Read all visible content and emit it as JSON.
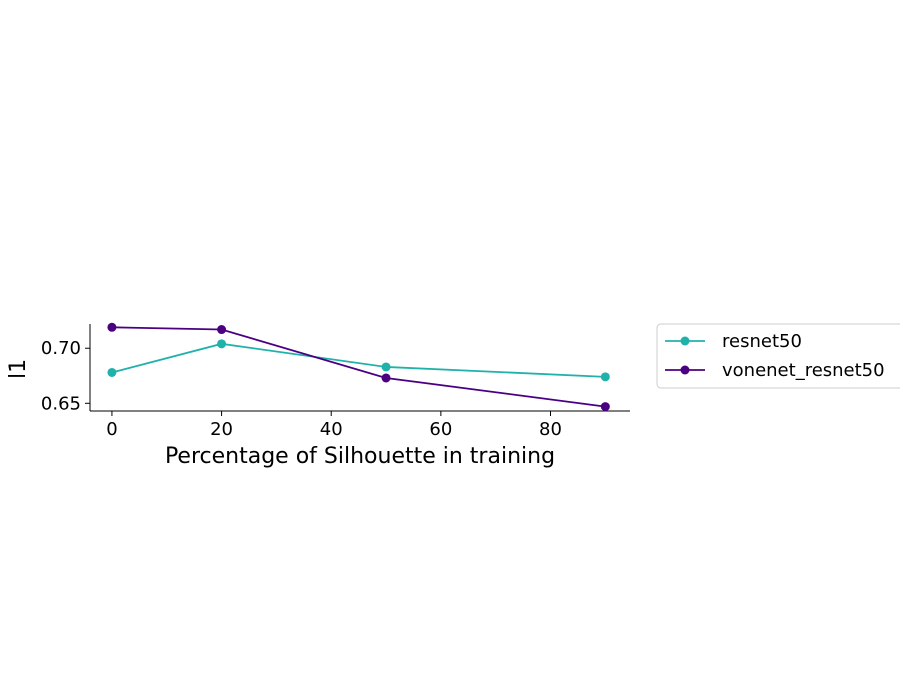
{
  "chart_data": {
    "type": "line",
    "xlabel": "Percentage of Silhouette in training",
    "ylabel": "l1",
    "x": [
      0,
      20,
      50,
      90
    ],
    "xlim": [
      -4,
      94.5
    ],
    "ylim": [
      0.643,
      0.722
    ],
    "xticks": [
      0,
      20,
      40,
      60,
      80
    ],
    "yticks": [
      0.65,
      0.7
    ],
    "xtick_labels": [
      "0",
      "20",
      "40",
      "60",
      "80"
    ],
    "ytick_labels": [
      "0.65",
      "0.70"
    ],
    "grid": false,
    "legend_position": "outside-right",
    "series": [
      {
        "name": "resnet50",
        "color": "#20b2aa",
        "values": [
          0.678,
          0.704,
          0.683,
          0.674
        ]
      },
      {
        "name": "vonenet_resnet50",
        "color": "#4b0082",
        "values": [
          0.719,
          0.717,
          0.673,
          0.647
        ]
      }
    ]
  }
}
